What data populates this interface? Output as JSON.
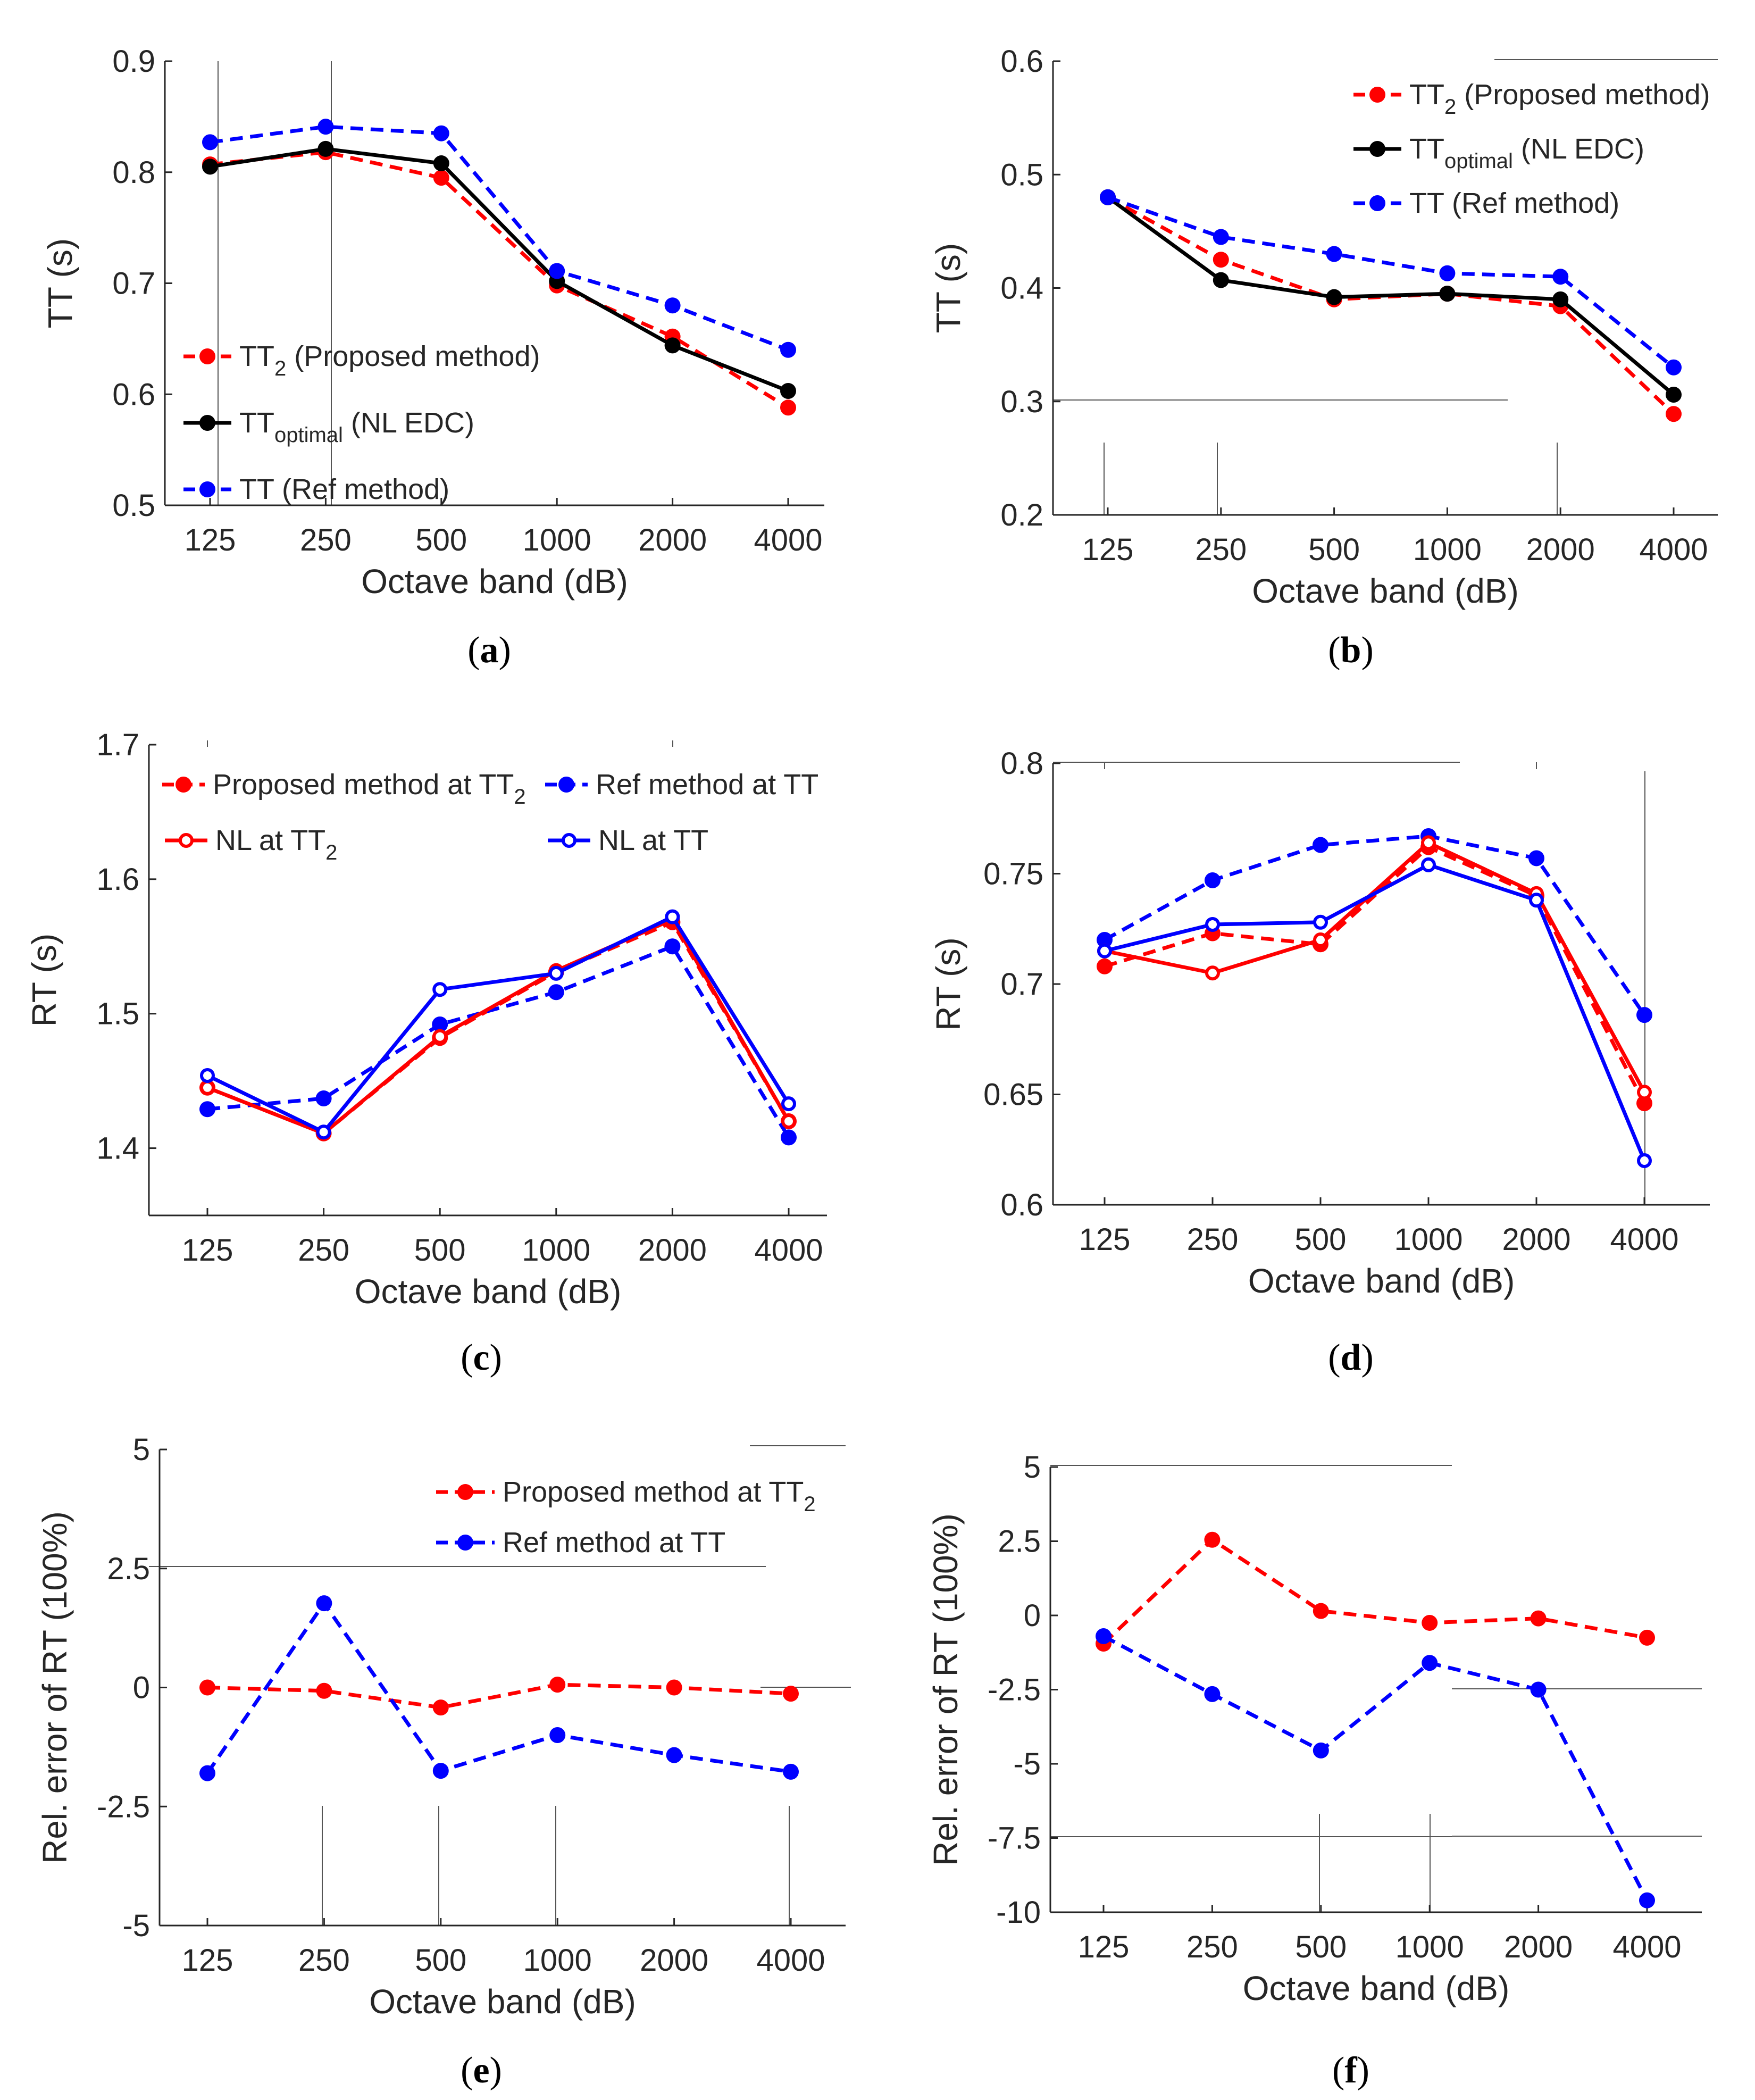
{
  "colors": {
    "red": "#ff0000",
    "blue": "#0000ff",
    "black": "#000000",
    "axis": "#262626"
  },
  "chart_data": [
    {
      "id": "a",
      "type": "line",
      "caption_letter": "a",
      "categories": [
        "125",
        "250",
        "500",
        "1000",
        "2000",
        "4000"
      ],
      "xlabel": "Octave band (dB)",
      "ylabel": "TT (s)",
      "ylim": [
        0.5,
        0.9
      ],
      "yticks": [
        "0.5",
        "0.6",
        "0.7",
        "0.8",
        "0.9"
      ],
      "legend_position": "bottom-left",
      "series": [
        {
          "name": "TT2 (Proposed method)",
          "label_main": "TT",
          "label_sub": "2",
          "label_rest": " (Proposed method)",
          "color": "red",
          "dash": true,
          "marker": "filled",
          "values": [
            0.807,
            0.818,
            0.795,
            0.698,
            0.652,
            0.588
          ]
        },
        {
          "name": "TToptimal (NL EDC)",
          "label_main": "TT",
          "label_sub": "optimal",
          "label_rest": " (NL EDC)",
          "color": "black",
          "dash": false,
          "marker": "filled",
          "values": [
            0.805,
            0.821,
            0.808,
            0.702,
            0.644,
            0.603
          ]
        },
        {
          "name": "TT (Ref method)",
          "label_main": "TT (Ref method)",
          "label_sub": "",
          "label_rest": "",
          "color": "blue",
          "dash": true,
          "marker": "filled",
          "values": [
            0.827,
            0.841,
            0.835,
            0.711,
            0.68,
            0.64
          ]
        }
      ]
    },
    {
      "id": "b",
      "type": "line",
      "caption_letter": "b",
      "categories": [
        "125",
        "250",
        "500",
        "1000",
        "2000",
        "4000"
      ],
      "xlabel": "Octave band (dB)",
      "ylabel": "TT (s)",
      "ylim": [
        0.2,
        0.6
      ],
      "yticks": [
        "0.2",
        "0.3",
        "0.4",
        "0.5",
        "0.6"
      ],
      "legend_position": "top-right",
      "series": [
        {
          "name": "TT2 (Proposed method)",
          "label_main": "TT",
          "label_sub": "2",
          "label_rest": " (Proposed method)",
          "color": "red",
          "dash": true,
          "marker": "filled",
          "values": [
            0.48,
            0.425,
            0.39,
            0.395,
            0.384,
            0.289
          ]
        },
        {
          "name": "TToptimal (NL EDC)",
          "label_main": "TT",
          "label_sub": "optimal",
          "label_rest": " (NL EDC)",
          "color": "black",
          "dash": false,
          "marker": "filled",
          "values": [
            0.48,
            0.407,
            0.392,
            0.395,
            0.39,
            0.306
          ]
        },
        {
          "name": "TT (Ref method)",
          "label_main": "TT (Ref method)",
          "label_sub": "",
          "label_rest": "",
          "color": "blue",
          "dash": true,
          "marker": "filled",
          "values": [
            0.48,
            0.445,
            0.43,
            0.413,
            0.41,
            0.33
          ]
        }
      ]
    },
    {
      "id": "c",
      "type": "line",
      "caption_letter": "c",
      "categories": [
        "125",
        "250",
        "500",
        "1000",
        "2000",
        "4000"
      ],
      "xlabel": "Octave band (dB)",
      "ylabel": "RT (s)",
      "ylim": [
        1.35,
        1.7
      ],
      "yticks": [
        "1.4",
        "1.5",
        "1.6",
        "1.7"
      ],
      "legend_position": "top",
      "series": [
        {
          "name": "Proposed method  at TT2",
          "label_main": "Proposed method  at TT",
          "label_sub": "2",
          "label_rest": "",
          "color": "red",
          "dash": true,
          "marker": "filled",
          "values": [
            1.445,
            1.411,
            1.482,
            1.531,
            1.568,
            1.42
          ]
        },
        {
          "name": "Ref method at TT",
          "label_main": "Ref method at TT",
          "label_sub": "",
          "label_rest": "",
          "color": "blue",
          "dash": true,
          "marker": "filled",
          "values": [
            1.429,
            1.437,
            1.492,
            1.516,
            1.55,
            1.408
          ]
        },
        {
          "name": "NL at TT2",
          "label_main": "NL at TT",
          "label_sub": "2",
          "label_rest": "",
          "color": "red",
          "dash": false,
          "marker": "open",
          "values": [
            1.445,
            1.411,
            1.483,
            1.532,
            1.57,
            1.42
          ]
        },
        {
          "name": "NL at TT",
          "label_main": "NL at TT",
          "label_sub": "",
          "label_rest": "",
          "color": "blue",
          "dash": false,
          "marker": "open",
          "values": [
            1.454,
            1.412,
            1.518,
            1.53,
            1.572,
            1.433
          ]
        }
      ]
    },
    {
      "id": "d",
      "type": "line",
      "caption_letter": "d",
      "categories": [
        "125",
        "250",
        "500",
        "1000",
        "2000",
        "4000"
      ],
      "xlabel": "Octave band (dB)",
      "ylabel": "RT (s)",
      "ylim": [
        0.6,
        0.8
      ],
      "yticks": [
        "0.6",
        "0.65",
        "0.7",
        "0.75",
        "0.8"
      ],
      "legend_position": "none",
      "series": [
        {
          "name": "Proposed method at TT2",
          "color": "red",
          "dash": true,
          "marker": "filled",
          "values": [
            0.708,
            0.723,
            0.718,
            0.762,
            0.74,
            0.646
          ]
        },
        {
          "name": "Ref method at TT",
          "color": "blue",
          "dash": true,
          "marker": "filled",
          "values": [
            0.72,
            0.747,
            0.763,
            0.767,
            0.757,
            0.686
          ]
        },
        {
          "name": "NL at TT2",
          "color": "red",
          "dash": false,
          "marker": "open",
          "values": [
            0.715,
            0.705,
            0.72,
            0.764,
            0.741,
            0.651
          ]
        },
        {
          "name": "NL at TT",
          "color": "blue",
          "dash": false,
          "marker": "open",
          "values": [
            0.715,
            0.727,
            0.728,
            0.754,
            0.738,
            0.62
          ]
        }
      ]
    },
    {
      "id": "e",
      "type": "line",
      "caption_letter": "e",
      "categories": [
        "125",
        "250",
        "500",
        "1000",
        "2000",
        "4000"
      ],
      "xlabel": "Octave band (dB)",
      "ylabel": "Rel. error of RT (100%)",
      "ylim": [
        -5,
        5
      ],
      "yticks": [
        "-5",
        "-2.5",
        "0",
        "2.5",
        "5"
      ],
      "legend_position": "top-right",
      "series": [
        {
          "name": "Proposed method at TT2",
          "label_main": "Proposed method at TT",
          "label_sub": "2",
          "label_rest": "",
          "color": "red",
          "dash": true,
          "marker": "filled",
          "values": [
            0.0,
            -0.07,
            -0.42,
            0.06,
            0.0,
            -0.13
          ]
        },
        {
          "name": "Ref method at TT",
          "label_main": "Ref method at TT",
          "label_sub": "",
          "label_rest": "",
          "color": "blue",
          "dash": true,
          "marker": "filled",
          "values": [
            -1.8,
            1.77,
            -1.75,
            -1.0,
            -1.42,
            -1.77
          ]
        }
      ]
    },
    {
      "id": "f",
      "type": "line",
      "caption_letter": "f",
      "categories": [
        "125",
        "250",
        "500",
        "1000",
        "2000",
        "4000"
      ],
      "xlabel": "Octave band (dB)",
      "ylabel": "Rel. error of RT (100%)",
      "ylim": [
        -10,
        5
      ],
      "yticks": [
        "-10",
        "-7.5",
        "-5",
        "-2.5",
        "0",
        "2.5",
        "5"
      ],
      "legend_position": "none",
      "series": [
        {
          "name": "Proposed method at TT2",
          "color": "red",
          "dash": true,
          "marker": "filled",
          "values": [
            -0.95,
            2.55,
            0.15,
            -0.25,
            -0.1,
            -0.75
          ]
        },
        {
          "name": "Ref method at TT",
          "color": "blue",
          "dash": true,
          "marker": "filled",
          "values": [
            -0.7,
            -2.65,
            -4.55,
            -1.6,
            -2.5,
            -9.6
          ]
        }
      ]
    }
  ]
}
